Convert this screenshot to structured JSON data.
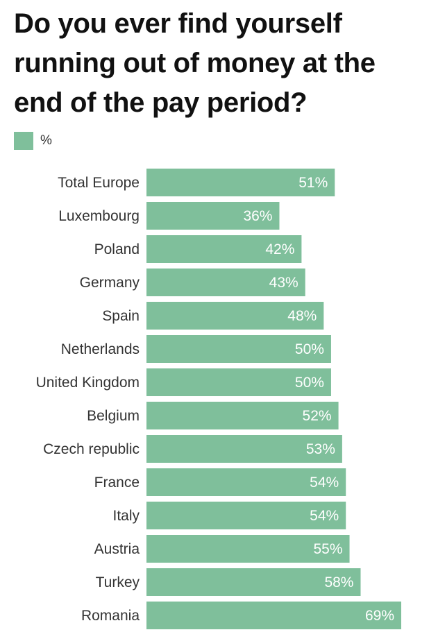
{
  "colors": {
    "bar": "#7fbf9b"
  },
  "chart_data": {
    "type": "bar",
    "orientation": "horizontal",
    "title": "Do you ever find yourself running out of money at the end of the pay period?",
    "legend": {
      "position": "top-left",
      "entries": [
        "%"
      ]
    },
    "categories": [
      "Total Europe",
      "Luxembourg",
      "Poland",
      "Germany",
      "Spain",
      "Netherlands",
      "United Kingdom",
      "Belgium",
      "Czech republic",
      "France",
      "Italy",
      "Austria",
      "Turkey",
      "Romania"
    ],
    "series": [
      {
        "name": "%",
        "values": [
          51,
          36,
          42,
          43,
          48,
          50,
          50,
          52,
          53,
          54,
          54,
          55,
          58,
          69
        ],
        "labels": [
          "51%",
          "36%",
          "42%",
          "43%",
          "48%",
          "50%",
          "50%",
          "52%",
          "53%",
          "54%",
          "54%",
          "55%",
          "58%",
          "69%"
        ]
      }
    ],
    "xlim": [
      0,
      69
    ],
    "grid": false
  }
}
